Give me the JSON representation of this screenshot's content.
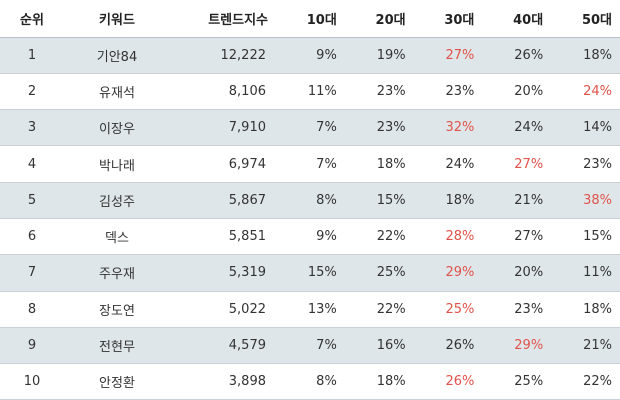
{
  "headers": {
    "rank": "순위",
    "keyword": "키워드",
    "score": "트렌드지수",
    "age10": "10대",
    "age20": "20대",
    "age30": "30대",
    "age40": "40대",
    "age50": "50대"
  },
  "highlight_color": "#e0534a",
  "stripe_color": "#dfe6ea",
  "rows": [
    {
      "rank": "1",
      "keyword": "기안84",
      "score": "12,222",
      "age10": "9%",
      "age20": "19%",
      "age30": "27%",
      "age40": "26%",
      "age50": "18%",
      "highlight": "age30"
    },
    {
      "rank": "2",
      "keyword": "유재석",
      "score": "8,106",
      "age10": "11%",
      "age20": "23%",
      "age30": "23%",
      "age40": "20%",
      "age50": "24%",
      "highlight": "age50"
    },
    {
      "rank": "3",
      "keyword": "이장우",
      "score": "7,910",
      "age10": "7%",
      "age20": "23%",
      "age30": "32%",
      "age40": "24%",
      "age50": "14%",
      "highlight": "age30"
    },
    {
      "rank": "4",
      "keyword": "박나래",
      "score": "6,974",
      "age10": "7%",
      "age20": "18%",
      "age30": "24%",
      "age40": "27%",
      "age50": "23%",
      "highlight": "age40"
    },
    {
      "rank": "5",
      "keyword": "김성주",
      "score": "5,867",
      "age10": "8%",
      "age20": "15%",
      "age30": "18%",
      "age40": "21%",
      "age50": "38%",
      "highlight": "age50"
    },
    {
      "rank": "6",
      "keyword": "덱스",
      "score": "5,851",
      "age10": "9%",
      "age20": "22%",
      "age30": "28%",
      "age40": "27%",
      "age50": "15%",
      "highlight": "age30"
    },
    {
      "rank": "7",
      "keyword": "주우재",
      "score": "5,319",
      "age10": "15%",
      "age20": "25%",
      "age30": "29%",
      "age40": "20%",
      "age50": "11%",
      "highlight": "age30"
    },
    {
      "rank": "8",
      "keyword": "장도연",
      "score": "5,022",
      "age10": "13%",
      "age20": "22%",
      "age30": "25%",
      "age40": "23%",
      "age50": "18%",
      "highlight": "age30"
    },
    {
      "rank": "9",
      "keyword": "전현무",
      "score": "4,579",
      "age10": "7%",
      "age20": "16%",
      "age30": "26%",
      "age40": "29%",
      "age50": "21%",
      "highlight": "age40"
    },
    {
      "rank": "10",
      "keyword": "안정환",
      "score": "3,898",
      "age10": "8%",
      "age20": "18%",
      "age30": "26%",
      "age40": "25%",
      "age50": "22%",
      "highlight": "age30"
    }
  ]
}
